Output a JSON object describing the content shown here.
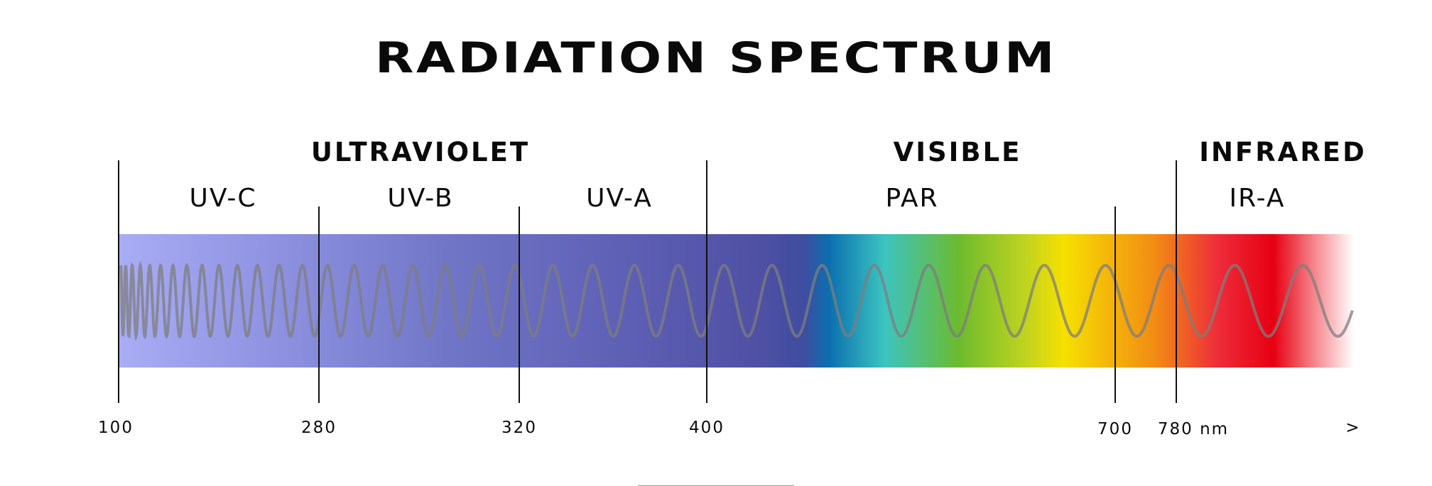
{
  "title": "RADIATION SPECTRUM",
  "regions": [
    {
      "id": "ultraviolet",
      "label": "ULTRAVIOLET"
    },
    {
      "id": "visible",
      "label": "VISIBLE"
    },
    {
      "id": "infrared",
      "label": "INFRARED"
    }
  ],
  "bands": [
    {
      "id": "uv-c",
      "label": "UV-C"
    },
    {
      "id": "uv-b",
      "label": "UV-B"
    },
    {
      "id": "uv-a",
      "label": "UV-A"
    },
    {
      "id": "par",
      "label": "PAR"
    },
    {
      "id": "ir-a",
      "label": "IR-A"
    }
  ],
  "scale": {
    "ticks": [
      "100",
      "280",
      "320",
      "400",
      "700",
      "780 nm",
      ">"
    ]
  },
  "colors": {
    "uv_start": "#a9adf5",
    "uv_end": "#4e4fa3",
    "blue": "#0b6fb0",
    "cyan": "#3cc4c0",
    "green": "#6cbb2f",
    "yellow": "#f6e000",
    "orange": "#f28a14",
    "red": "#e60012",
    "wave": "#7d7d7d",
    "divider": "#111111"
  }
}
